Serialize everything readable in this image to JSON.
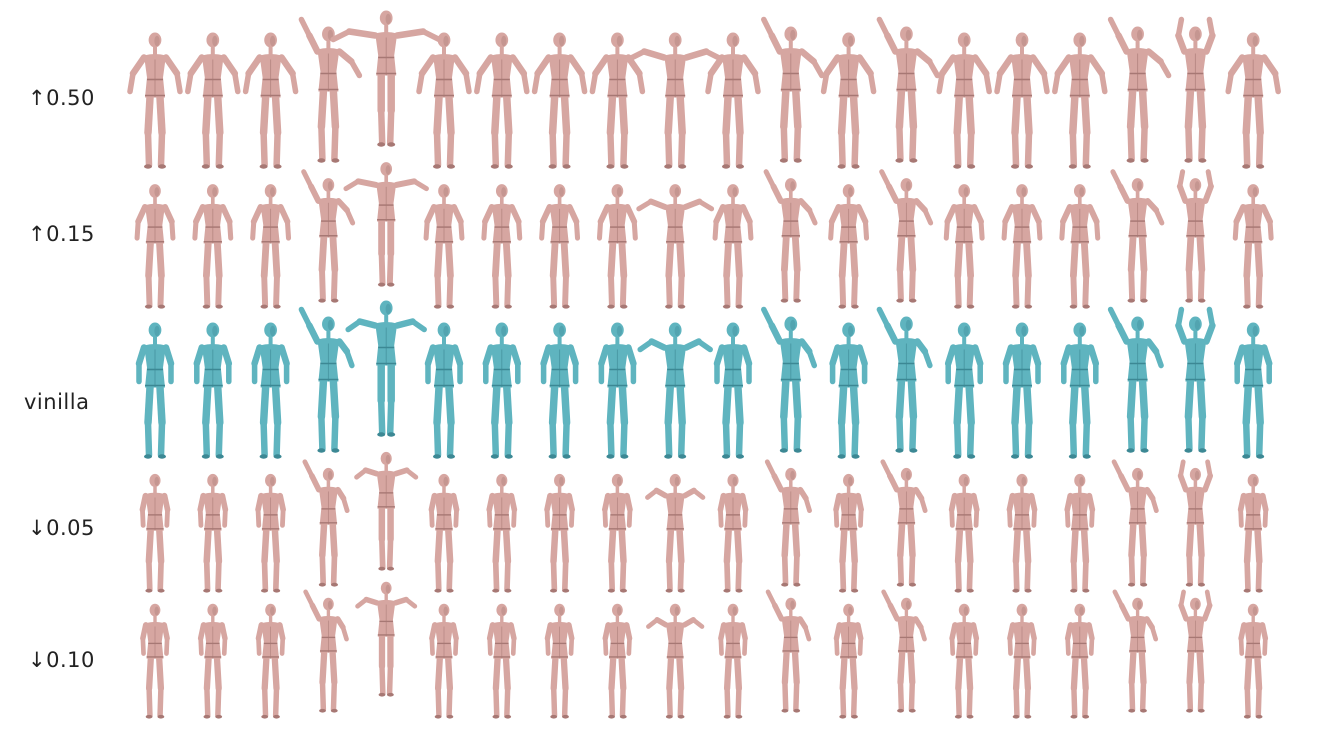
{
  "rows": [
    {
      "label": "↑0.50",
      "color": "#d6a6a1",
      "shade": "#a77874",
      "pose_style": "wide"
    },
    {
      "label": "↑0.15",
      "color": "#d6a6a1",
      "shade": "#a77874",
      "pose_style": "medium"
    },
    {
      "label": "vinilla",
      "color": "#5fb4bf",
      "shade": "#3c8894",
      "pose_style": "base"
    },
    {
      "label": "↓0.05",
      "color": "#d6a6a1",
      "shade": "#a77874",
      "pose_style": "narrow"
    },
    {
      "label": "↓0.10",
      "color": "#d6a6a1",
      "shade": "#a77874",
      "pose_style": "narrow"
    }
  ],
  "figures_per_row": 20,
  "poses": [
    "a-pose-arms-out",
    "a-pose-arms-out",
    "a-pose-arms-out",
    "arm-raised",
    "jump",
    "a-pose-arms-out",
    "a-pose-arms-out",
    "a-pose-arms-out",
    "a-pose-arms-out",
    "arms-wide-up",
    "a-pose-arms-out",
    "arm-raised",
    "a-pose-arms-out",
    "arm-raised",
    "a-pose-arms-out",
    "a-pose-arms-out",
    "a-pose-arms-out",
    "arm-raised",
    "arms-up",
    "a-pose-arms-out"
  ]
}
